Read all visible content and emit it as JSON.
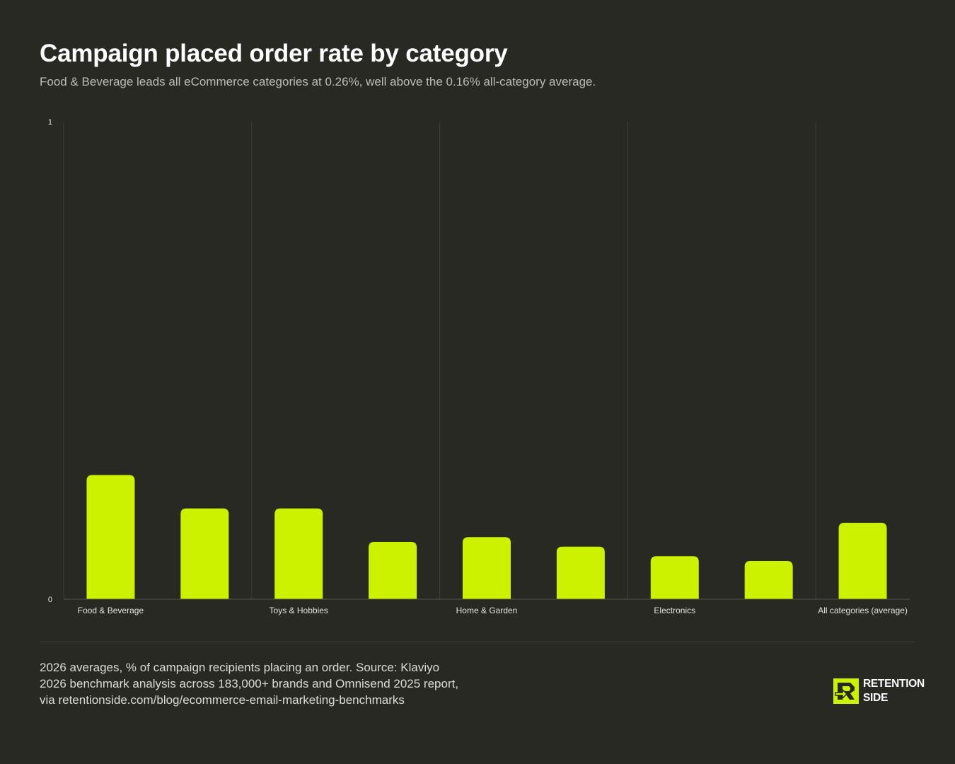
{
  "header": {
    "title": "Campaign placed order rate by category",
    "subtitle": "Food & Beverage leads all eCommerce categories at 0.26%, well above the 0.16% all-category average."
  },
  "chart_data": {
    "type": "bar",
    "categories": [
      "Food & Beverage",
      "",
      "Toys & Hobbies",
      "",
      "Home & Garden",
      "",
      "Electronics",
      "",
      "All categories (average)"
    ],
    "values": [
      0.26,
      0.19,
      0.19,
      0.12,
      0.13,
      0.11,
      0.09,
      0.08,
      0.16
    ],
    "ylim": [
      0,
      1
    ],
    "y_ticks": [
      "0",
      "1"
    ],
    "grid": "vertical",
    "bar_color": "#cdf200"
  },
  "footer": {
    "note": "2026 averages, % of campaign recipients placing an order. Source: Klaviyo 2026 benchmark analysis across 183,000+ brands and Omnisend 2025 report, via retentionside.com/blog/ecommerce-email-marketing-benchmarks",
    "logo_line1": "RETENTION",
    "logo_line2": "SIDE",
    "logo_icon": "retention-side-logo-icon"
  },
  "colors": {
    "background": "#272922",
    "accent": "#cdf200",
    "grid": "#3d4036"
  }
}
